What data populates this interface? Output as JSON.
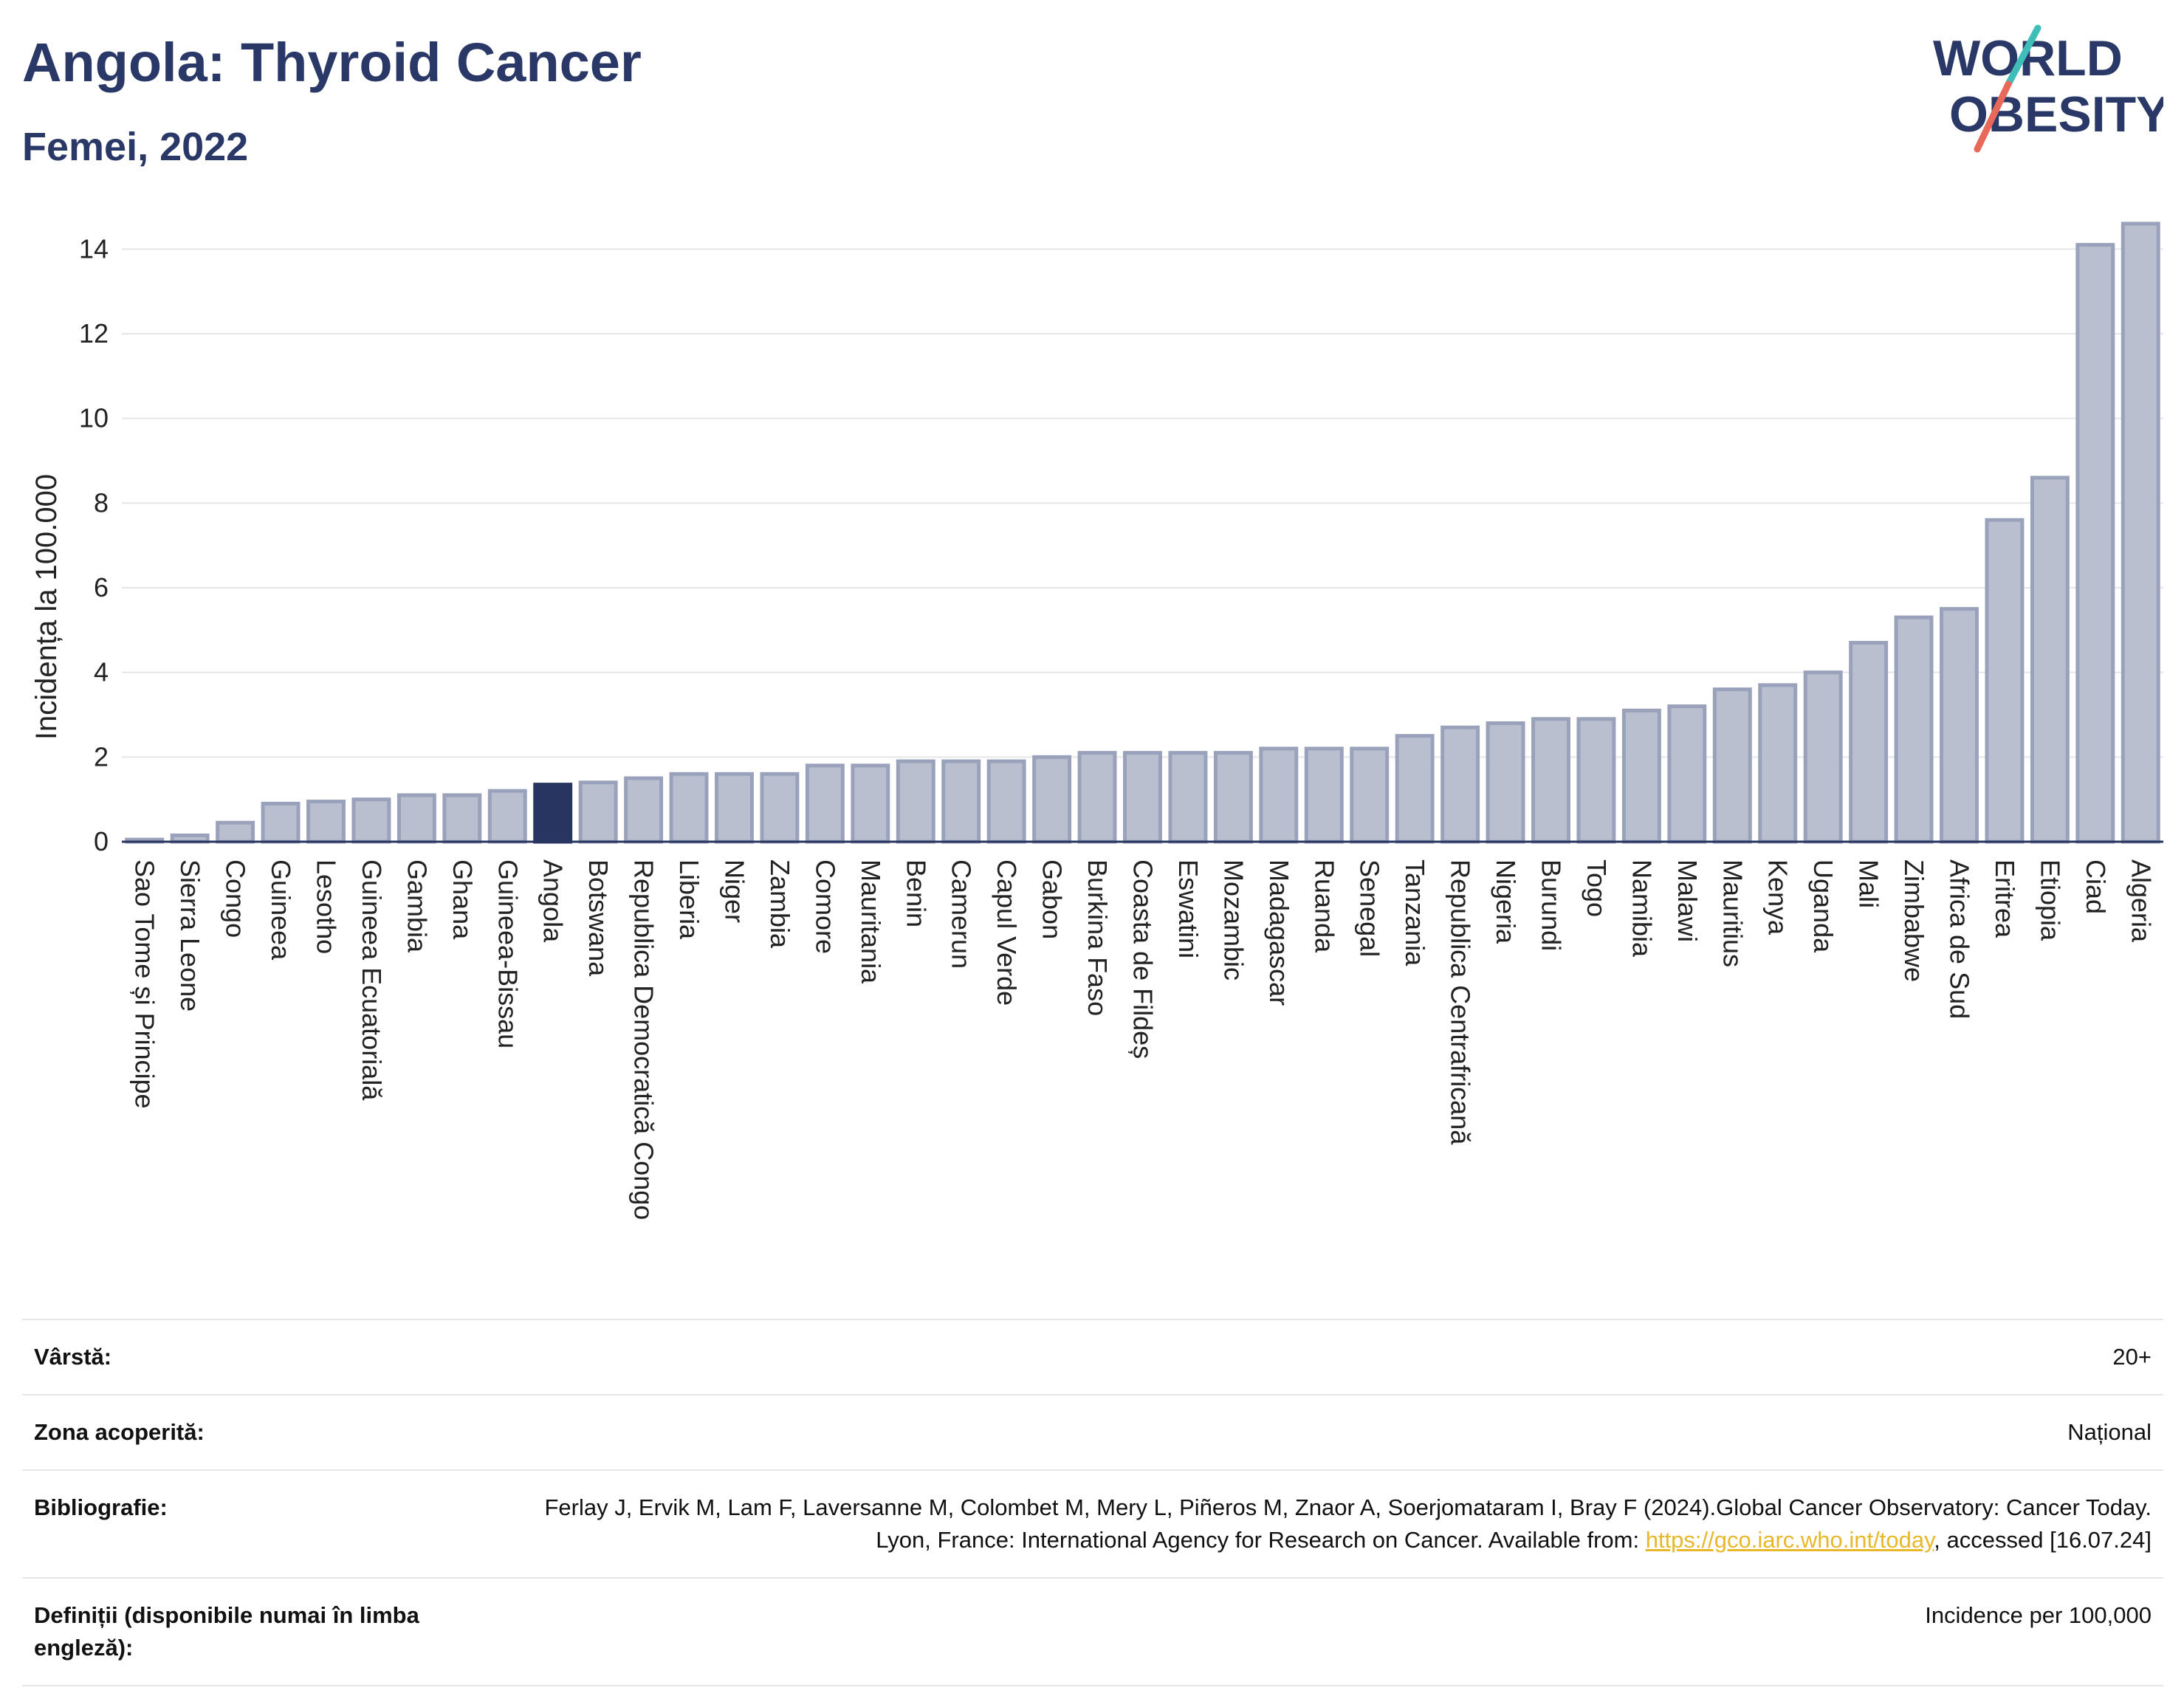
{
  "header": {
    "title": "Angola: Thyroid Cancer",
    "subtitle": "Femei, 2022"
  },
  "logo": {
    "line1": "WORLD",
    "line2": "OBESITY",
    "name": "world-obesity-logo"
  },
  "colors": {
    "bar": "#b9bfcf",
    "bar_stroke": "#9aa2bb",
    "highlight": "#283561",
    "grid": "#e6e6e6"
  },
  "chart_data": {
    "type": "bar",
    "ylabel": "Incidența la 100.000",
    "ylim": [
      0,
      15
    ],
    "yticks": [
      0,
      2,
      4,
      6,
      8,
      10,
      12,
      14
    ],
    "grid": true,
    "highlight": "Angola",
    "categories": [
      "Sao Tome și Principe",
      "Sierra Leone",
      "Congo",
      "Guineea",
      "Lesotho",
      "Guineea Ecuatorială",
      "Gambia",
      "Ghana",
      "Guineea-Bissau",
      "Angola",
      "Botswana",
      "Republica Democratică Congo",
      "Liberia",
      "Niger",
      "Zambia",
      "Comore",
      "Mauritania",
      "Benin",
      "Camerun",
      "Capul Verde",
      "Gabon",
      "Burkina Faso",
      "Coasta de Fildeș",
      "Eswatini",
      "Mozambic",
      "Madagascar",
      "Ruanda",
      "Senegal",
      "Tanzania",
      "Republica Centrafricană",
      "Nigeria",
      "Burundi",
      "Togo",
      "Namibia",
      "Malawi",
      "Mauritius",
      "Kenya",
      "Uganda",
      "Mali",
      "Zimbabwe",
      "Africa de Sud",
      "Eritrea",
      "Etiopia",
      "Ciad",
      "Algeria"
    ],
    "values": [
      0.05,
      0.15,
      0.45,
      0.9,
      0.95,
      1.0,
      1.1,
      1.1,
      1.2,
      1.35,
      1.4,
      1.5,
      1.6,
      1.6,
      1.6,
      1.8,
      1.8,
      1.9,
      1.9,
      1.9,
      2.0,
      2.1,
      2.1,
      2.1,
      2.1,
      2.2,
      2.2,
      2.2,
      2.5,
      2.7,
      2.8,
      2.9,
      2.9,
      3.1,
      3.2,
      3.6,
      3.7,
      4.0,
      4.7,
      5.3,
      5.5,
      7.6,
      8.6,
      14.1,
      14.6
    ]
  },
  "info": {
    "rows": [
      {
        "label": "Vârstă:",
        "value": "20+"
      },
      {
        "label": "Zona acoperită:",
        "value": "Național"
      },
      {
        "label": "Bibliografie:",
        "value": "Ferlay J, Ervik M, Lam F, Laversanne M, Colombet M, Mery L, Piñeros M, Znaor A, Soerjomataram I, Bray F (2024).Global Cancer Observatory: Cancer Today. Lyon, France: International Agency for Research on Cancer. Available from: ",
        "link": "https://gco.iarc.who.int/today",
        "suffix": ", accessed [16.07.24]"
      },
      {
        "label": "Definiții (disponibile numai în limba engleză):",
        "value": "Incidence per 100,000"
      }
    ]
  }
}
